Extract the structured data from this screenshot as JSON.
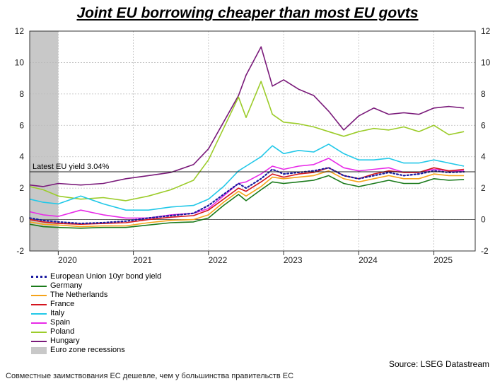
{
  "title": "Joint EU borrowing cheaper than most EU govts",
  "source": "Source: LSEG Datastream",
  "caption": "Совместные заимствования ЕС дешевле, чем у большинства правительств ЕС",
  "colors": {
    "eu": "#1a1aa0",
    "germany": "#1a7a1a",
    "netherlands": "#f5a31a",
    "france": "#d4141e",
    "italy": "#22c8e8",
    "spain": "#e82ae8",
    "poland": "#9ccc2a",
    "hungary": "#7a1a7a",
    "recession": "#c8c8c8"
  },
  "chart_data": {
    "type": "line",
    "title": "Joint EU borrowing cheaper than most EU govts",
    "xlim": [
      2019.62,
      2025.55
    ],
    "ylim": [
      -2,
      12
    ],
    "y_ticks": [
      -2,
      0,
      2,
      4,
      6,
      8,
      10,
      12
    ],
    "x_tick_labels": [
      "2020",
      "2021",
      "2022",
      "2023",
      "2024",
      "2025"
    ],
    "x_tick_positions": [
      2020.5,
      2021.5,
      2022.5,
      2023.5,
      2024.5,
      2025.5
    ],
    "x_year_dividers": [
      2020,
      2021,
      2022,
      2023,
      2024,
      2025
    ],
    "grid": true,
    "reference_line": {
      "y": 3.04,
      "label": "Latest EU yield 3.04%"
    },
    "recession_band": {
      "x0": 2019.62,
      "x1": 2020.0,
      "name": "Euro zone recessions"
    },
    "legend": "bottom-left",
    "series": [
      {
        "key": "eu",
        "name": "European Union 10yr bond yield",
        "dashed": true,
        "x": [
          2019.62,
          2019.8,
          2020.0,
          2020.3,
          2020.6,
          2020.9,
          2021.2,
          2021.5,
          2021.8,
          2022.0,
          2022.2,
          2022.4,
          2022.5,
          2022.7,
          2022.85,
          2023.0,
          2023.2,
          2023.4,
          2023.6,
          2023.8,
          2024.0,
          2024.2,
          2024.4,
          2024.6,
          2024.8,
          2025.0,
          2025.2,
          2025.4
        ],
        "y": [
          0.1,
          -0.05,
          -0.15,
          -0.25,
          -0.2,
          -0.1,
          0.1,
          0.25,
          0.4,
          0.9,
          1.6,
          2.3,
          2.0,
          2.6,
          3.2,
          2.9,
          3.0,
          3.1,
          3.3,
          2.8,
          2.6,
          2.8,
          3.0,
          2.8,
          2.9,
          3.1,
          3.0,
          3.04
        ]
      },
      {
        "key": "germany",
        "name": "Germany",
        "x": [
          2019.62,
          2019.8,
          2020.0,
          2020.3,
          2020.6,
          2020.9,
          2021.2,
          2021.5,
          2021.8,
          2022.0,
          2022.2,
          2022.4,
          2022.5,
          2022.7,
          2022.85,
          2023.0,
          2023.2,
          2023.4,
          2023.6,
          2023.8,
          2024.0,
          2024.2,
          2024.4,
          2024.6,
          2024.8,
          2025.0,
          2025.2,
          2025.4
        ],
        "y": [
          -0.3,
          -0.45,
          -0.5,
          -0.55,
          -0.5,
          -0.5,
          -0.35,
          -0.2,
          -0.15,
          0.1,
          0.9,
          1.6,
          1.2,
          1.9,
          2.4,
          2.3,
          2.4,
          2.5,
          2.8,
          2.3,
          2.1,
          2.3,
          2.5,
          2.3,
          2.3,
          2.6,
          2.5,
          2.55
        ]
      },
      {
        "key": "netherlands",
        "name": "The Netherlands",
        "x": [
          2019.62,
          2019.8,
          2020.0,
          2020.3,
          2020.6,
          2020.9,
          2021.2,
          2021.5,
          2021.8,
          2022.0,
          2022.2,
          2022.4,
          2022.5,
          2022.7,
          2022.85,
          2023.0,
          2023.2,
          2023.4,
          2023.6,
          2023.8,
          2024.0,
          2024.2,
          2024.4,
          2024.6,
          2024.8,
          2025.0,
          2025.2,
          2025.4
        ],
        "y": [
          -0.15,
          -0.3,
          -0.35,
          -0.45,
          -0.4,
          -0.4,
          -0.2,
          -0.05,
          0.0,
          0.3,
          1.1,
          1.8,
          1.5,
          2.1,
          2.7,
          2.6,
          2.7,
          2.8,
          3.1,
          2.6,
          2.4,
          2.6,
          2.8,
          2.6,
          2.6,
          2.9,
          2.8,
          2.8
        ]
      },
      {
        "key": "france",
        "name": "France",
        "x": [
          2019.62,
          2019.8,
          2020.0,
          2020.3,
          2020.6,
          2020.9,
          2021.2,
          2021.5,
          2021.8,
          2022.0,
          2022.2,
          2022.4,
          2022.5,
          2022.7,
          2022.85,
          2023.0,
          2023.2,
          2023.4,
          2023.6,
          2023.8,
          2024.0,
          2024.2,
          2024.4,
          2024.6,
          2024.8,
          2025.0,
          2025.2,
          2025.4
        ],
        "y": [
          0.0,
          -0.15,
          -0.25,
          -0.3,
          -0.25,
          -0.2,
          0.0,
          0.15,
          0.25,
          0.6,
          1.3,
          2.0,
          1.8,
          2.4,
          2.9,
          2.7,
          2.9,
          3.0,
          3.3,
          2.8,
          2.6,
          2.9,
          3.1,
          3.0,
          3.0,
          3.3,
          3.1,
          3.2
        ]
      },
      {
        "key": "italy",
        "name": "Italy",
        "x": [
          2019.62,
          2019.8,
          2020.0,
          2020.3,
          2020.6,
          2020.9,
          2021.2,
          2021.5,
          2021.8,
          2022.0,
          2022.2,
          2022.4,
          2022.5,
          2022.7,
          2022.85,
          2023.0,
          2023.2,
          2023.4,
          2023.6,
          2023.8,
          2024.0,
          2024.2,
          2024.4,
          2024.6,
          2024.8,
          2025.0,
          2025.2,
          2025.4
        ],
        "y": [
          1.3,
          1.1,
          1.0,
          1.5,
          1.0,
          0.6,
          0.6,
          0.8,
          0.9,
          1.3,
          2.1,
          3.1,
          3.4,
          4.0,
          4.7,
          4.2,
          4.4,
          4.3,
          4.8,
          4.2,
          3.8,
          3.8,
          3.9,
          3.6,
          3.6,
          3.8,
          3.6,
          3.4
        ]
      },
      {
        "key": "spain",
        "name": "Spain",
        "x": [
          2019.62,
          2019.8,
          2020.0,
          2020.3,
          2020.6,
          2020.9,
          2021.2,
          2021.5,
          2021.8,
          2022.0,
          2022.2,
          2022.4,
          2022.5,
          2022.7,
          2022.85,
          2023.0,
          2023.2,
          2023.4,
          2023.6,
          2023.8,
          2024.0,
          2024.2,
          2024.4,
          2024.6,
          2024.8,
          2025.0,
          2025.2,
          2025.4
        ],
        "y": [
          0.5,
          0.3,
          0.2,
          0.6,
          0.3,
          0.1,
          0.1,
          0.3,
          0.4,
          0.7,
          1.5,
          2.3,
          2.4,
          2.9,
          3.4,
          3.2,
          3.4,
          3.5,
          3.9,
          3.3,
          3.1,
          3.2,
          3.3,
          3.0,
          3.0,
          3.2,
          3.1,
          3.1
        ]
      },
      {
        "key": "poland",
        "name": "Poland",
        "x": [
          2019.62,
          2019.8,
          2020.0,
          2020.3,
          2020.6,
          2020.9,
          2021.2,
          2021.5,
          2021.8,
          2022.0,
          2022.2,
          2022.4,
          2022.5,
          2022.7,
          2022.85,
          2023.0,
          2023.2,
          2023.4,
          2023.6,
          2023.8,
          2024.0,
          2024.2,
          2024.4,
          2024.6,
          2024.8,
          2025.0,
          2025.2,
          2025.4
        ],
        "y": [
          2.1,
          1.9,
          1.5,
          1.3,
          1.4,
          1.2,
          1.5,
          1.9,
          2.5,
          3.8,
          5.8,
          7.8,
          6.5,
          8.8,
          6.7,
          6.2,
          6.1,
          5.9,
          5.6,
          5.3,
          5.6,
          5.8,
          5.7,
          5.9,
          5.6,
          6.0,
          5.4,
          5.6
        ]
      },
      {
        "key": "hungary",
        "name": "Hungary",
        "x": [
          2019.62,
          2019.8,
          2020.0,
          2020.3,
          2020.6,
          2020.9,
          2021.2,
          2021.5,
          2021.8,
          2022.0,
          2022.2,
          2022.4,
          2022.5,
          2022.7,
          2022.85,
          2023.0,
          2023.2,
          2023.4,
          2023.6,
          2023.8,
          2024.0,
          2024.2,
          2024.4,
          2024.6,
          2024.8,
          2025.0,
          2025.2,
          2025.4
        ],
        "y": [
          2.2,
          2.1,
          2.3,
          2.2,
          2.3,
          2.6,
          2.8,
          3.0,
          3.5,
          4.5,
          6.2,
          7.9,
          9.2,
          11.0,
          8.5,
          8.9,
          8.3,
          7.9,
          6.9,
          5.7,
          6.6,
          7.1,
          6.7,
          6.8,
          6.7,
          7.1,
          7.2,
          7.1
        ]
      }
    ]
  }
}
